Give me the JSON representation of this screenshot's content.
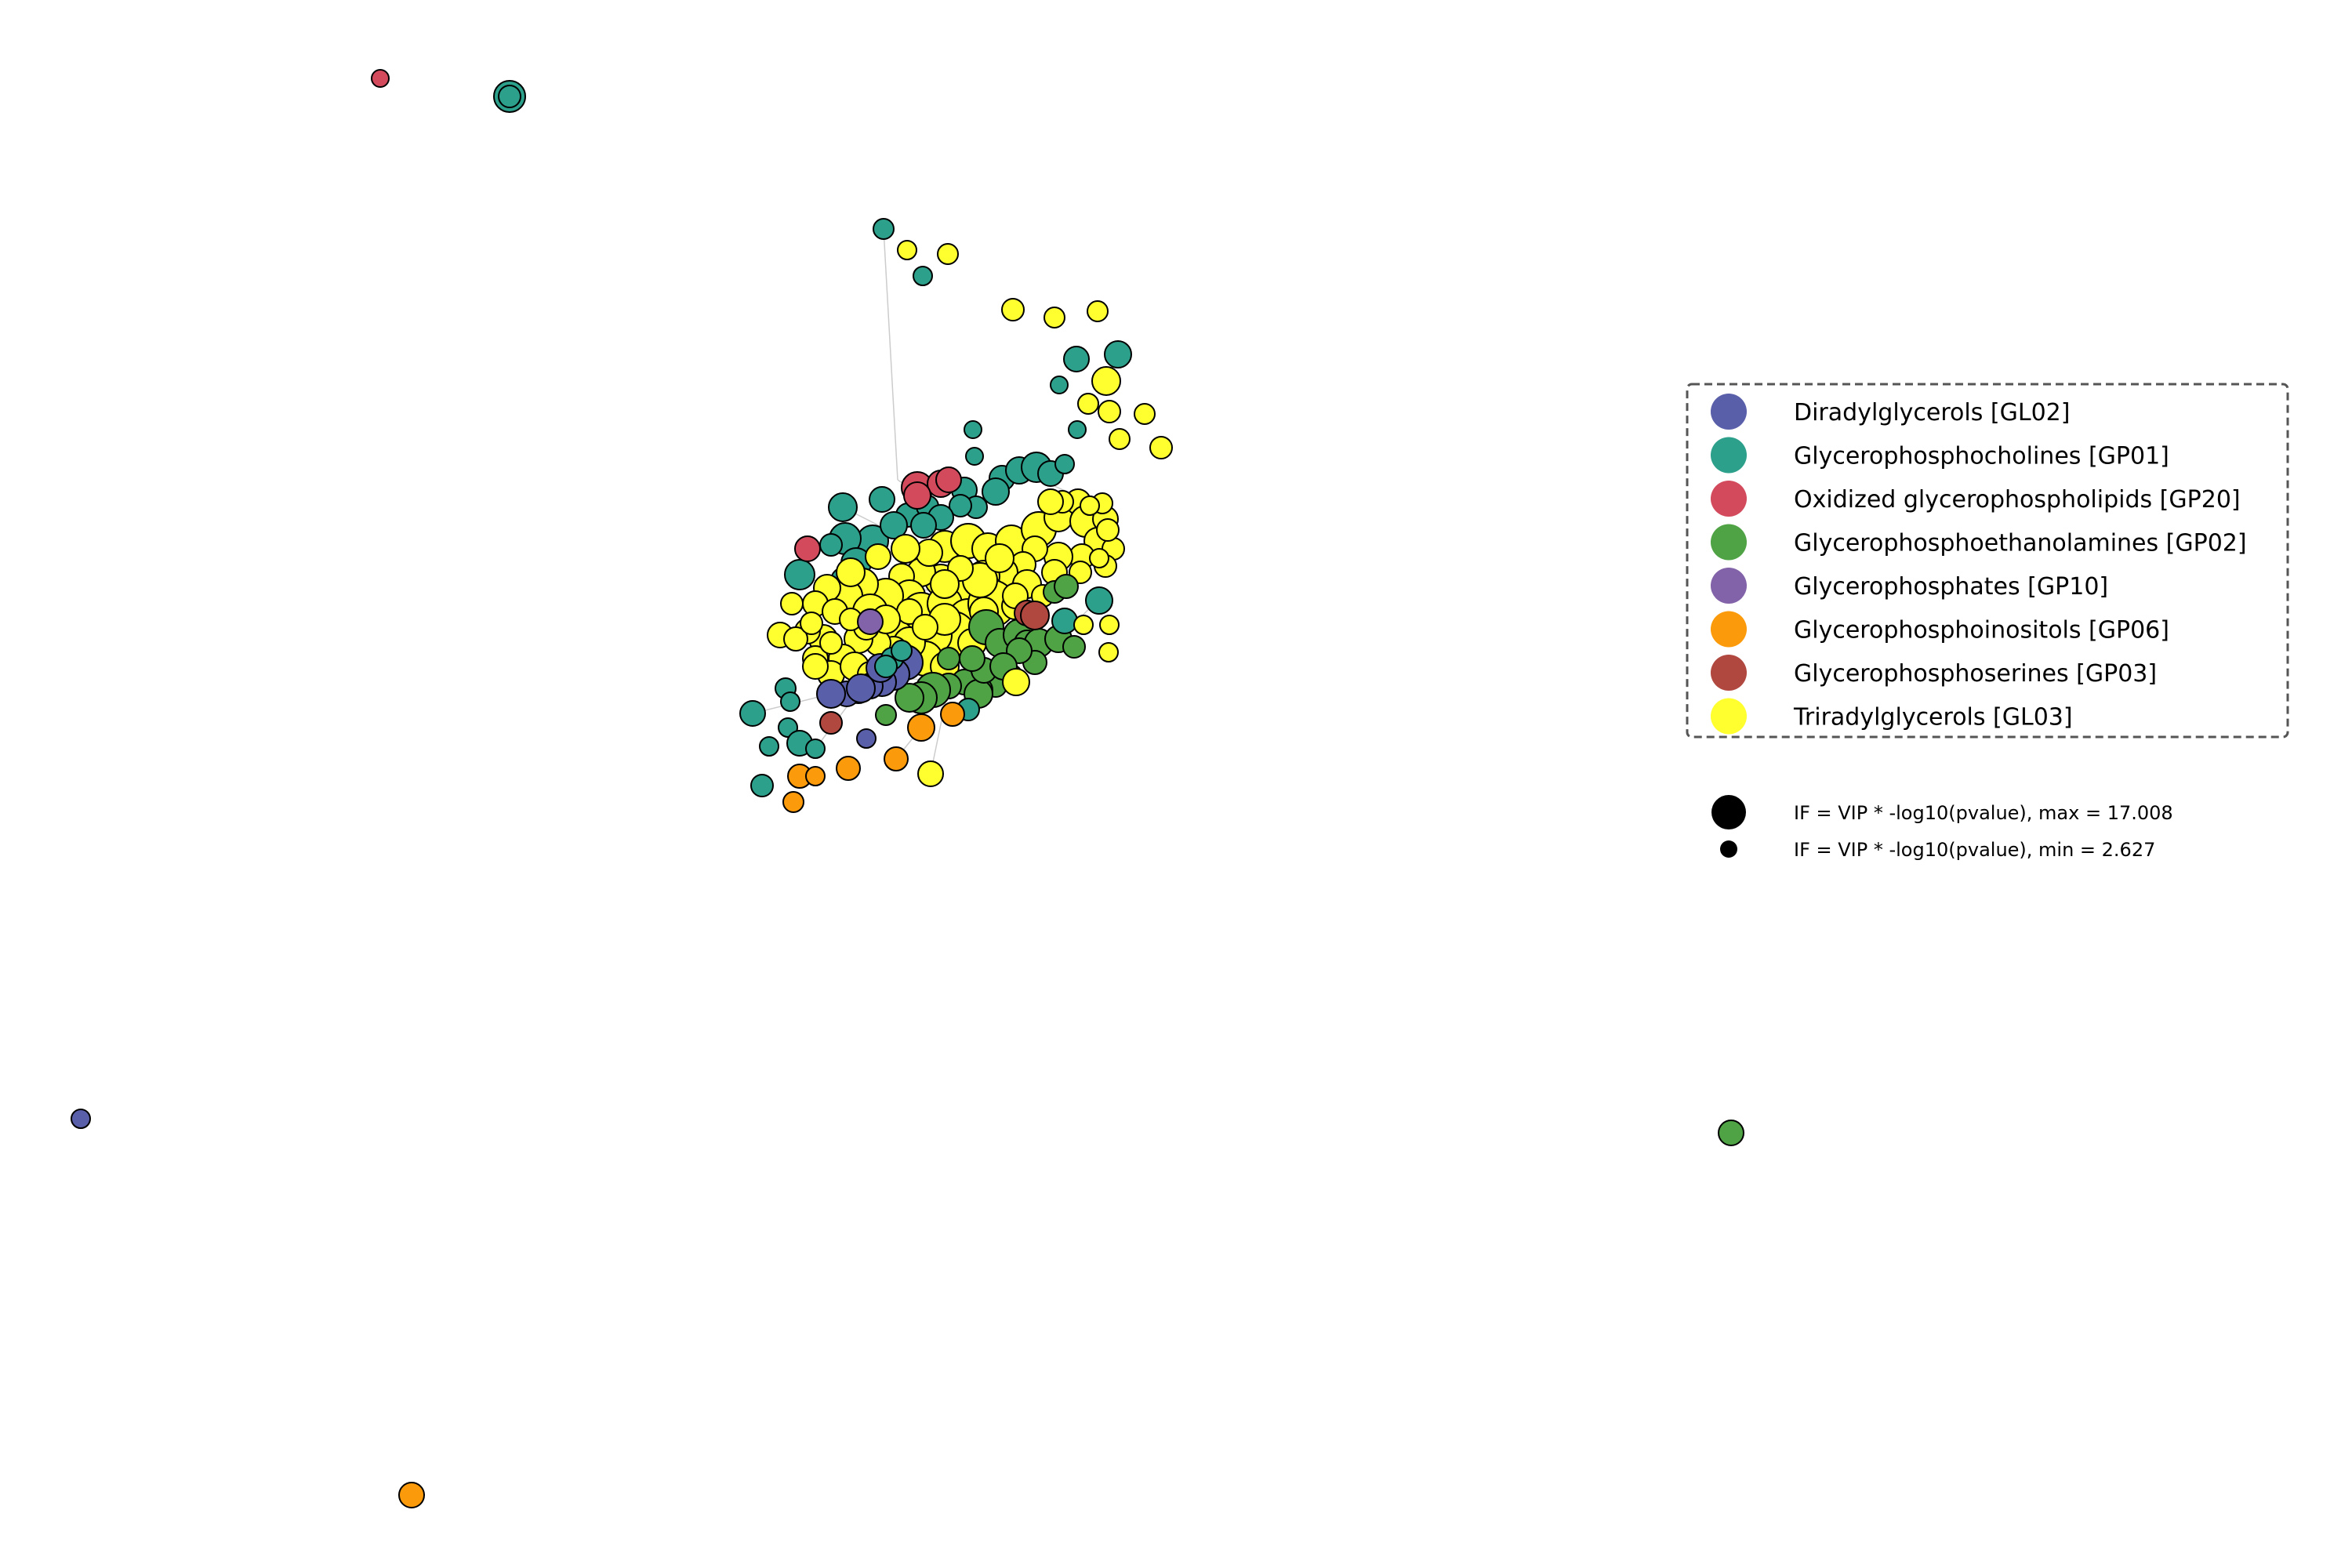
{
  "legend": {
    "categories": [
      {
        "label": "Diradylglycerols [GL02]",
        "color": "#5a5fa9"
      },
      {
        "label": "Glycerophosphocholines [GP01]",
        "color": "#2ca08b"
      },
      {
        "label": "Oxidized glycerophospholipids [GP20]",
        "color": "#d24a5c"
      },
      {
        "label": "Glycerophosphoethanolamines [GP02]",
        "color": "#4fa345"
      },
      {
        "label": "Glycerophosphates [GP10]",
        "color": "#8262a8"
      },
      {
        "label": "Glycerophosphoinositols [GP06]",
        "color": "#fb9a0a"
      },
      {
        "label": "Glycerophosphoserines [GP03]",
        "color": "#b04840"
      },
      {
        "label": "Triradylglycerols [GL03]",
        "color": "#ffff2f"
      }
    ],
    "size_max_label": "IF = VIP * -log10(pvalue), max = 17.008",
    "size_min_label": "IF = VIP * -log10(pvalue), min = 2.627"
  },
  "if_range": {
    "min": 2.627,
    "max": 17.008
  },
  "colors": {
    "edge": "#cccccc",
    "node_stroke": "#000000",
    "legend_border": "#555555"
  }
}
